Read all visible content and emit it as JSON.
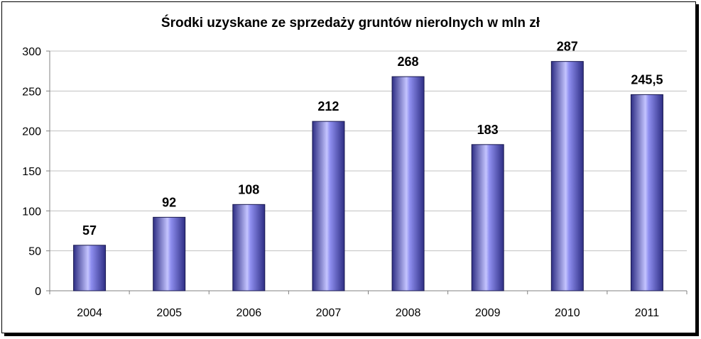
{
  "chart_data": {
    "type": "bar",
    "title": "Środki uzyskane ze sprzedaży gruntów nierolnych w mln zł",
    "xlabel": "",
    "ylabel": "",
    "categories": [
      "2004",
      "2005",
      "2006",
      "2007",
      "2008",
      "2009",
      "2010",
      "2011"
    ],
    "values": [
      57,
      92,
      108,
      212,
      268,
      183,
      287,
      245.5
    ],
    "data_labels": [
      "57",
      "92",
      "108",
      "212",
      "268",
      "183",
      "287",
      "245,5"
    ],
    "yticks": [
      "0",
      "50",
      "100",
      "150",
      "200",
      "250",
      "300"
    ],
    "ylim": [
      0,
      300
    ],
    "grid": true,
    "legend": "none",
    "bar_color": "#8f8ff0",
    "bar_dark": "#2e2e84",
    "bar_highlight": "#c4c4ff"
  }
}
